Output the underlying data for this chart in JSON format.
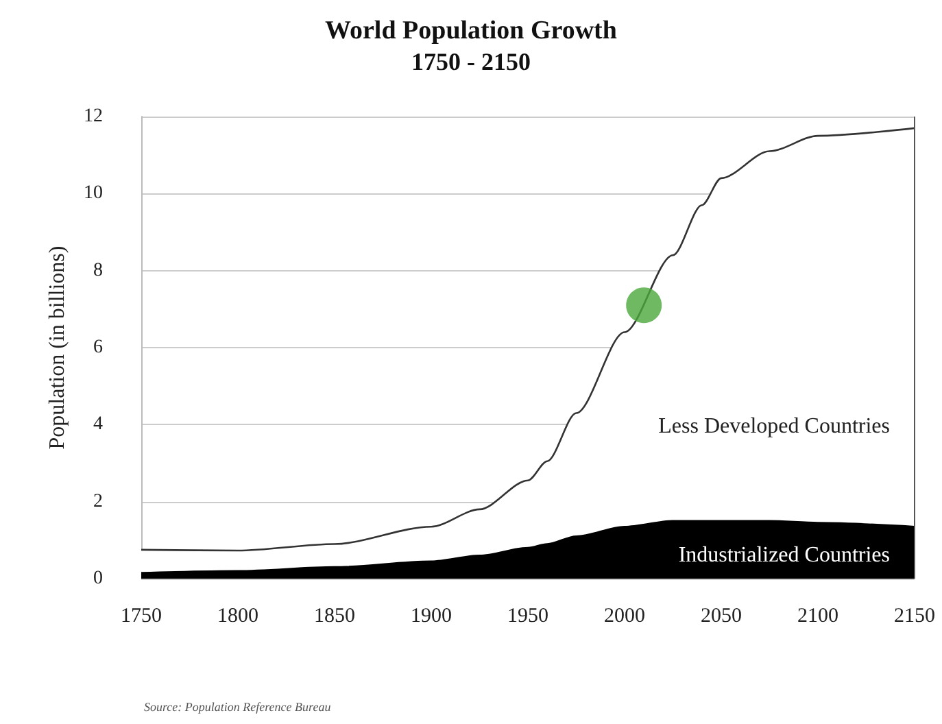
{
  "chart_data": {
    "type": "area",
    "stacked": true,
    "title": "World Population Growth",
    "subtitle": "1750 - 2150",
    "ylabel": "Population (in billions)",
    "annotations": [
      "Source: Population Reference Bureau"
    ],
    "x": [
      1750,
      1800,
      1850,
      1900,
      1925,
      1950,
      1960,
      1975,
      2000,
      2025,
      2040,
      2050,
      2075,
      2100,
      2150
    ],
    "series": [
      {
        "name": "Industrialized Countries",
        "color": "#000000",
        "values": [
          0.15,
          0.2,
          0.3,
          0.45,
          0.6,
          0.8,
          0.9,
          1.1,
          1.35,
          1.5,
          1.5,
          1.5,
          1.5,
          1.45,
          1.35
        ]
      },
      {
        "name": "Less Developed Countries",
        "color": "#333333",
        "values": [
          0.6,
          0.53,
          0.6,
          0.9,
          1.2,
          1.75,
          2.15,
          3.2,
          5.05,
          6.9,
          8.2,
          8.9,
          9.6,
          10.05,
          10.35
        ]
      },
      {
        "type": "scatter",
        "color": "#4aa83a",
        "x": [
          2010
        ],
        "values": [
          7.1
        ]
      }
    ],
    "xlim": [
      1750,
      2150
    ],
    "xticks": [
      {
        "value": 1750,
        "label": "1750"
      },
      {
        "value": 1800,
        "label": "1800"
      },
      {
        "value": 1850,
        "label": "1850"
      },
      {
        "value": 1900,
        "label": "1900"
      },
      {
        "value": 1950,
        "label": "1950"
      },
      {
        "value": 2000,
        "label": "2000"
      },
      {
        "value": 2050,
        "label": "2050"
      },
      {
        "value": 2100,
        "label": "2100"
      },
      {
        "value": 2150,
        "label": "2150"
      }
    ],
    "ylim": [
      0,
      12
    ],
    "yticks": [
      0,
      2,
      4,
      6,
      8,
      10,
      12
    ],
    "grid": "y",
    "legend": false
  }
}
